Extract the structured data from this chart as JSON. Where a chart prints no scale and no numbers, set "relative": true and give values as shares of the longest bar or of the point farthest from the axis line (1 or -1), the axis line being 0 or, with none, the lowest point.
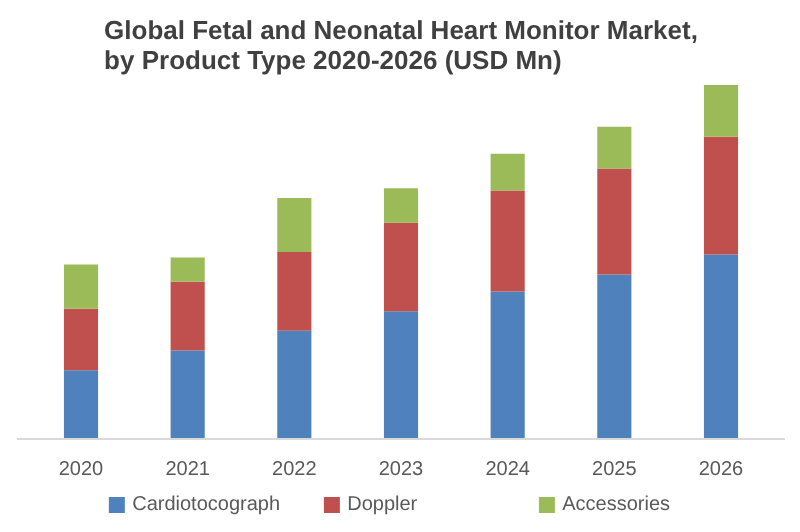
{
  "chart_data": {
    "type": "bar",
    "title": "Global Fetal and Neonatal Heart Monitor Market, by Product Type 2020-2026 (USD Mn)",
    "categories": [
      "2020",
      "2021",
      "2022",
      "2023",
      "2024",
      "2025",
      "2026"
    ],
    "stacked": true,
    "relative": true,
    "legend": "bottom",
    "grid": false,
    "series": [
      {
        "name": "Cardiotocograph",
        "color": "#4f81bd",
        "values": [
          0.194,
          0.25,
          0.306,
          0.361,
          0.417,
          0.465,
          0.521
        ]
      },
      {
        "name": "Doppler",
        "color": "#c0504d",
        "values": [
          0.174,
          0.194,
          0.222,
          0.25,
          0.285,
          0.299,
          0.333
        ]
      },
      {
        "name": "Accessories",
        "color": "#9bbb59",
        "values": [
          0.125,
          0.069,
          0.153,
          0.097,
          0.104,
          0.118,
          0.146
        ]
      }
    ]
  }
}
